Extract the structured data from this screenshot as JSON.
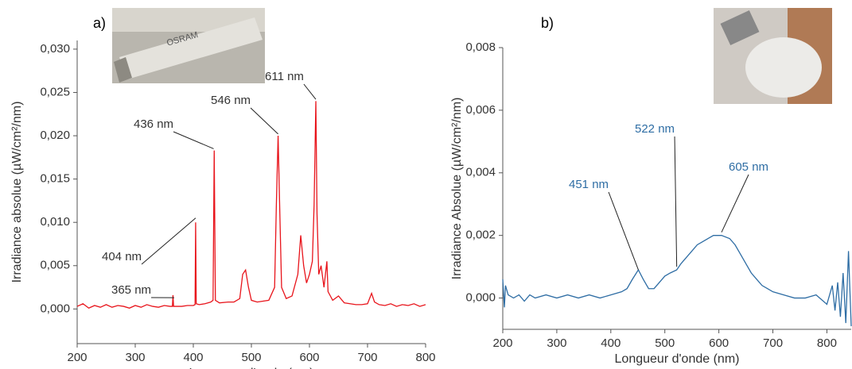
{
  "chart_data": [
    {
      "type": "line",
      "panel": "a)",
      "color": "#e8141b",
      "xlabel": "Longueur d'onde (nm)",
      "ylabel": "Irradiance absolue (µW/cm²/nm)",
      "xlim": [
        200,
        800
      ],
      "ylim": [
        -0.004,
        0.031
      ],
      "xticks": [
        200,
        300,
        400,
        500,
        600,
        700,
        800
      ],
      "yticks": [
        {
          "value": 0.0,
          "label": "0,000"
        },
        {
          "value": 0.005,
          "label": "0,005"
        },
        {
          "value": 0.01,
          "label": "0,010"
        },
        {
          "value": 0.015,
          "label": "0,015"
        },
        {
          "value": 0.02,
          "label": "0,020"
        },
        {
          "value": 0.025,
          "label": "0,025"
        },
        {
          "value": 0.03,
          "label": "0,030"
        }
      ],
      "x": [
        200,
        210,
        220,
        230,
        240,
        250,
        260,
        270,
        280,
        290,
        300,
        310,
        320,
        330,
        340,
        350,
        360,
        364,
        365,
        366,
        380,
        390,
        400,
        403,
        404,
        405,
        410,
        420,
        430,
        434,
        436,
        438,
        445,
        460,
        470,
        480,
        485,
        490,
        495,
        500,
        510,
        520,
        530,
        540,
        543,
        546,
        549,
        552,
        560,
        570,
        580,
        585,
        590,
        595,
        600,
        605,
        608,
        611,
        613,
        616,
        620,
        625,
        630,
        632,
        640,
        650,
        660,
        670,
        680,
        690,
        700,
        707,
        712,
        720,
        730,
        740,
        750,
        760,
        770,
        780,
        790,
        800
      ],
      "values": [
        0.0003,
        0.0006,
        0.0001,
        0.0004,
        0.0002,
        0.0005,
        0.0002,
        0.0004,
        0.0003,
        0.0001,
        0.0004,
        0.0002,
        0.0005,
        0.0003,
        0.0002,
        0.0004,
        0.0003,
        0.0003,
        0.0016,
        0.0003,
        0.0003,
        0.0004,
        0.0004,
        0.0005,
        0.01,
        0.0006,
        0.0005,
        0.0006,
        0.0008,
        0.001,
        0.0183,
        0.001,
        0.0007,
        0.0008,
        0.0008,
        0.0012,
        0.004,
        0.0045,
        0.0025,
        0.001,
        0.0008,
        0.0009,
        0.001,
        0.0025,
        0.012,
        0.02,
        0.011,
        0.0025,
        0.0012,
        0.0015,
        0.004,
        0.0085,
        0.005,
        0.003,
        0.004,
        0.0055,
        0.012,
        0.024,
        0.011,
        0.004,
        0.005,
        0.0025,
        0.0055,
        0.002,
        0.001,
        0.0015,
        0.0007,
        0.0006,
        0.0005,
        0.0005,
        0.0006,
        0.0018,
        0.0008,
        0.0005,
        0.0004,
        0.0006,
        0.0003,
        0.0005,
        0.0004,
        0.0006,
        0.0003,
        0.0005
      ],
      "annotations": [
        {
          "label": "365 nm",
          "x": 367,
          "y": 0.0013
        },
        {
          "label": "404 nm",
          "x": 404,
          "y": 0.0105
        },
        {
          "label": "436 nm",
          "x": 435,
          "y": 0.0185
        },
        {
          "label": "546 nm",
          "x": 546,
          "y": 0.0202
        },
        {
          "label": "611 nm",
          "x": 611,
          "y": 0.0242
        }
      ]
    },
    {
      "type": "line",
      "panel": "b)",
      "color": "#2e6da4",
      "xlabel": "Longueur d'onde (nm)",
      "ylabel": "Irradiance Absolue (µW/cm²/nm)",
      "xlim": [
        200,
        845
      ],
      "ylim": [
        -0.001,
        0.008
      ],
      "xticks": [
        200,
        300,
        400,
        500,
        600,
        700,
        800
      ],
      "yticks": [
        {
          "value": 0.0,
          "label": "0,000"
        },
        {
          "value": 0.002,
          "label": "0,002"
        },
        {
          "value": 0.004,
          "label": "0,004"
        },
        {
          "value": 0.006,
          "label": "0,006"
        },
        {
          "value": 0.008,
          "label": "0,008"
        }
      ],
      "x": [
        200,
        203,
        205,
        210,
        220,
        230,
        240,
        250,
        260,
        280,
        300,
        320,
        340,
        360,
        380,
        400,
        420,
        430,
        440,
        451,
        460,
        470,
        480,
        490,
        500,
        510,
        522,
        530,
        540,
        550,
        560,
        570,
        580,
        590,
        605,
        620,
        630,
        640,
        650,
        660,
        670,
        680,
        690,
        700,
        720,
        740,
        760,
        780,
        800,
        810,
        815,
        820,
        825,
        830,
        835,
        840,
        845
      ],
      "values": [
        0.0006,
        -0.0003,
        0.0004,
        0.0001,
        0.0,
        0.0001,
        -0.0001,
        0.0001,
        0.0,
        0.0001,
        0.0,
        0.0001,
        0.0,
        0.0001,
        0.0,
        0.0001,
        0.0002,
        0.0003,
        0.0006,
        0.0009,
        0.0006,
        0.0003,
        0.0003,
        0.0005,
        0.0007,
        0.0008,
        0.0009,
        0.0011,
        0.0013,
        0.0015,
        0.0017,
        0.0018,
        0.0019,
        0.002,
        0.002,
        0.0019,
        0.0017,
        0.0014,
        0.0011,
        0.0008,
        0.0006,
        0.0004,
        0.0003,
        0.0002,
        0.0001,
        0.0,
        0.0,
        0.0001,
        -0.0002,
        0.0004,
        -0.0004,
        0.0005,
        -0.0006,
        0.0008,
        -0.0008,
        0.0015,
        -0.0009
      ],
      "annotations": [
        {
          "label": "451 nm",
          "x": 451,
          "y": 0.0009
        },
        {
          "label": "522 nm",
          "x": 522,
          "y": 0.001
        },
        {
          "label": "605 nm",
          "x": 605,
          "y": 0.0021
        }
      ]
    }
  ]
}
